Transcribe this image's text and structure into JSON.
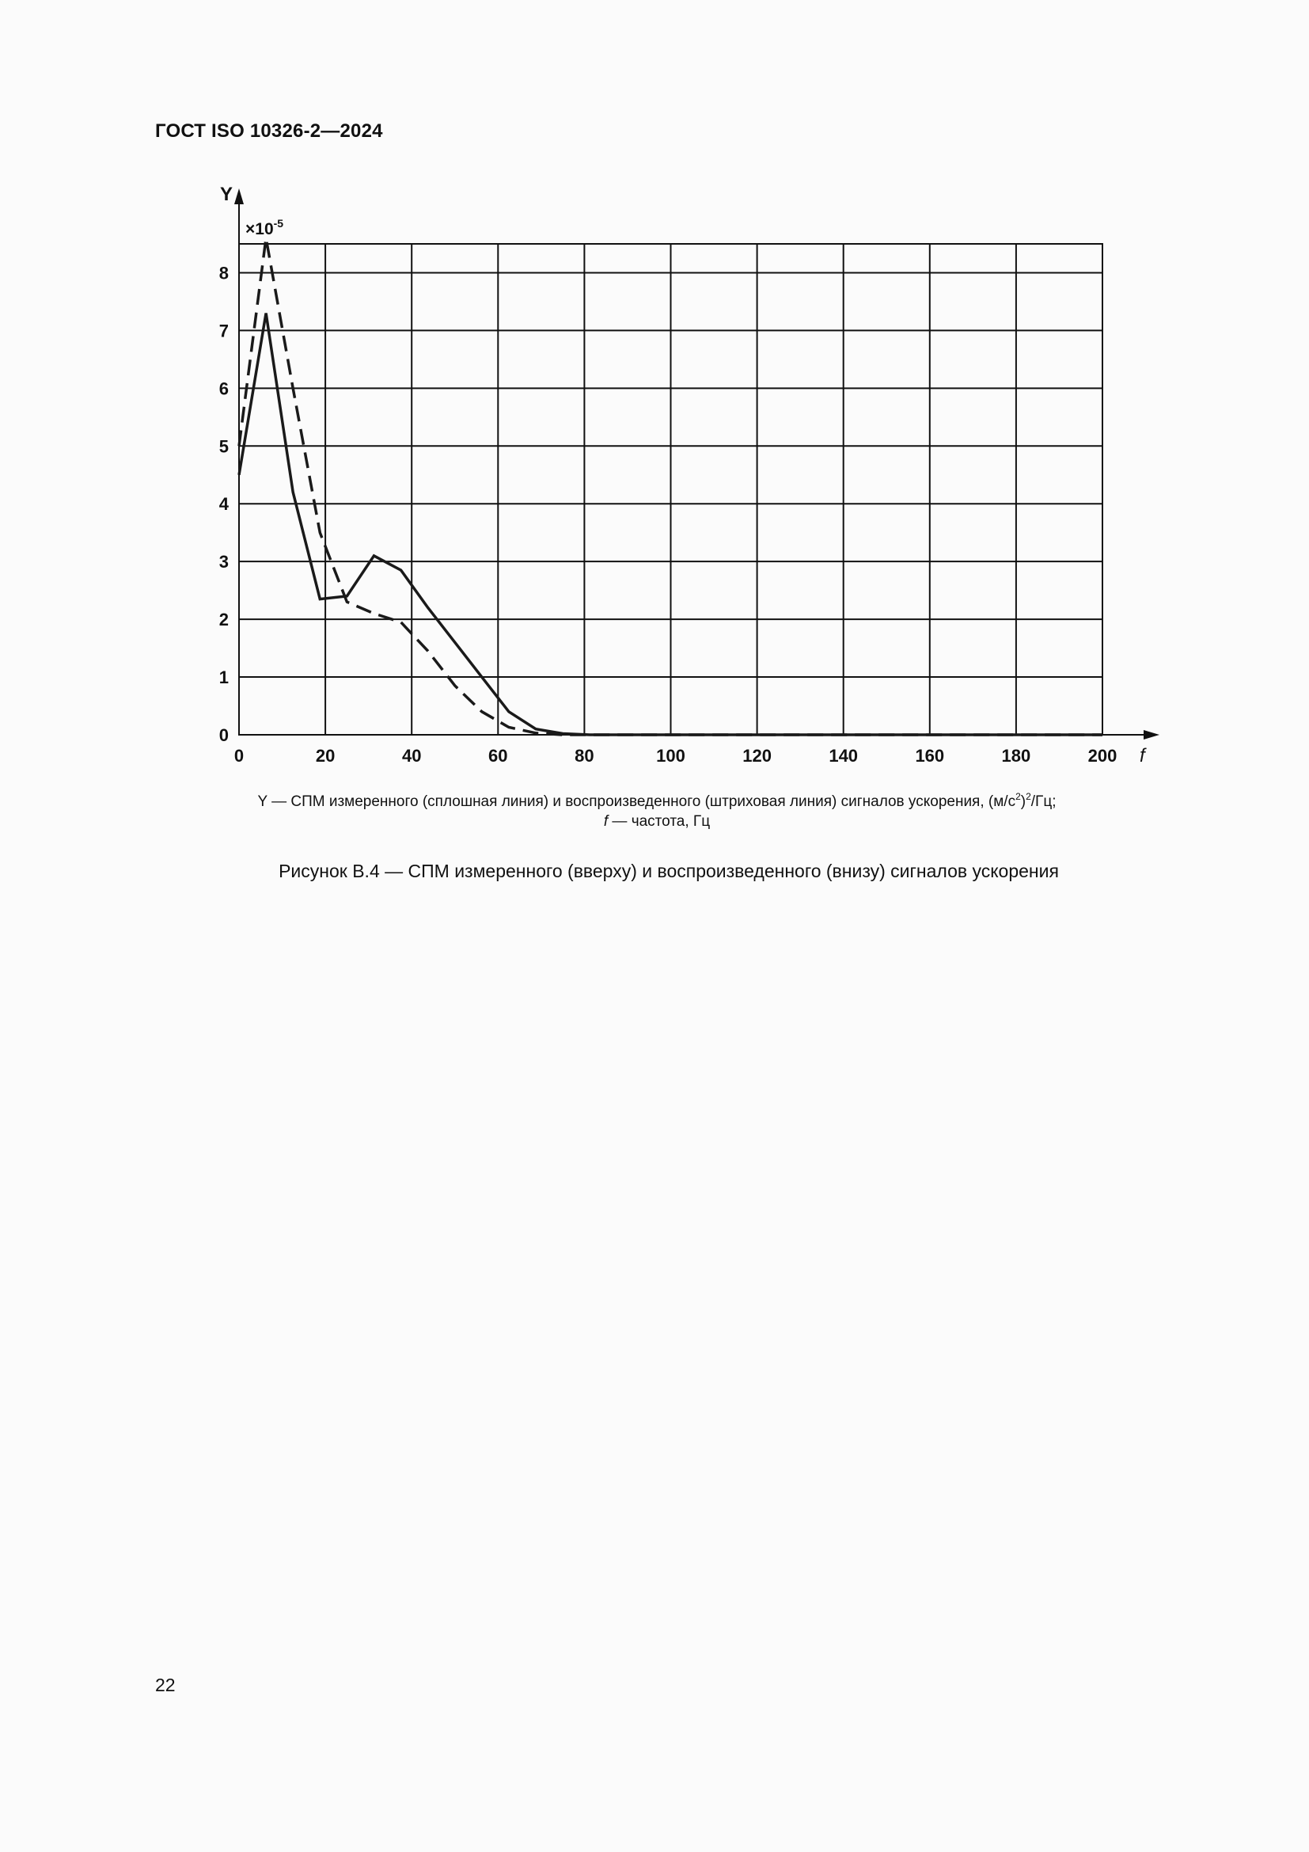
{
  "header": {
    "title": "ГОСТ ISO 10326-2—2024"
  },
  "chart_data": {
    "type": "line",
    "y_axis_symbol": "Y",
    "x_axis_symbol": "f",
    "multiplier_base": "×10",
    "multiplier_exp": "-5",
    "xlim": [
      0,
      200
    ],
    "ylim": [
      0,
      8.5
    ],
    "x_ticks": [
      0,
      20,
      40,
      60,
      80,
      100,
      120,
      140,
      160,
      180,
      200
    ],
    "y_ticks": [
      0,
      1,
      2,
      3,
      4,
      5,
      6,
      7,
      8
    ],
    "grid": true,
    "series": [
      {
        "line_style": "solid",
        "color": "#1a1a1a",
        "x": [
          0,
          6.25,
          12.5,
          18.75,
          25,
          31.25,
          37.5,
          43.75,
          50,
          56.25,
          62.5,
          68.75,
          75,
          81.25,
          87.5,
          100,
          150,
          200
        ],
        "y": [
          4.5,
          7.3,
          4.2,
          2.35,
          2.4,
          3.1,
          2.85,
          2.2,
          1.6,
          1.0,
          0.4,
          0.1,
          0.02,
          0.0,
          0.0,
          0.0,
          0.0,
          0.0
        ]
      },
      {
        "line_style": "dashed",
        "color": "#1a1a1a",
        "x": [
          0,
          6.25,
          12.5,
          18.75,
          25,
          31.25,
          37.5,
          43.75,
          50,
          56.25,
          62.5,
          68.75,
          75,
          81.25,
          87.5,
          100,
          150,
          200
        ],
        "y": [
          5.0,
          8.6,
          6.0,
          3.5,
          2.3,
          2.1,
          1.95,
          1.45,
          0.85,
          0.4,
          0.13,
          0.03,
          0.0,
          0.0,
          0.0,
          0.0,
          0.0,
          0.0
        ]
      }
    ]
  },
  "legend": {
    "line1_prefix": "Y — СПМ измеренного (сплошная линия) и воспроизведенного (штриховая линия) сигналов ускорения, (м/с",
    "line1_sup1": "2",
    "line1_mid": ")",
    "line1_sup2": "2",
    "line1_suffix": "/Гц;",
    "line2_symbol": "f",
    "line2_text": " — частота, Гц"
  },
  "caption": "Рисунок B.4 — СПМ измеренного (вверху) и воспроизведенного (внизу) сигналов ускорения",
  "page_number": "22"
}
